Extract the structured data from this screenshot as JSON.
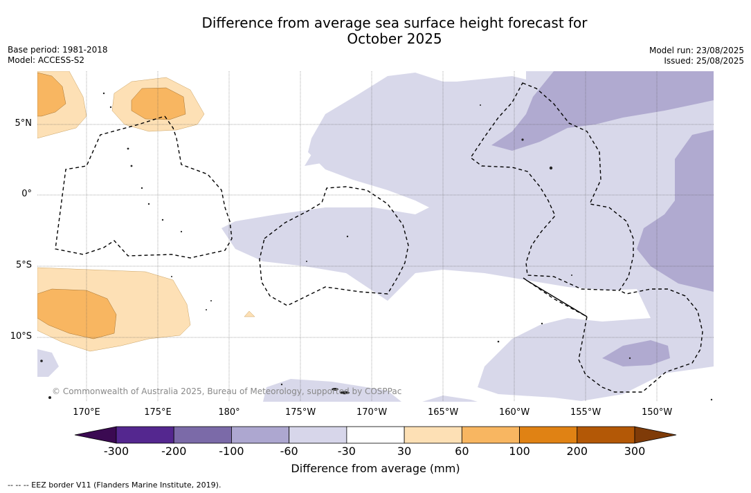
{
  "header": {
    "title_line1": "Difference from average sea surface height forecast for",
    "title_line2": "October 2025",
    "base_period": "Base period: 1981-2018",
    "model": "Model: ACCESS-S2",
    "model_run": "Model run: 23/08/2025",
    "issued": "Issued: 25/08/2025"
  },
  "map": {
    "lon_labels": [
      "170°E",
      "175°E",
      "180°",
      "175°W",
      "170°W",
      "165°W",
      "160°W",
      "155°W",
      "150°W"
    ],
    "lat_labels": [
      "5°N",
      "0°",
      "5°S",
      "10°S"
    ],
    "copyright": "© Commonwealth of Australia 2025, Bureau of Meteorology, supported by COSPPac"
  },
  "colorbar": {
    "ticks": [
      "-300",
      "-200",
      "-100",
      "-60",
      "-30",
      "30",
      "60",
      "100",
      "200",
      "300"
    ],
    "colors": [
      "#3b0a52",
      "#54278f",
      "#7b6aa8",
      "#ada7d0",
      "#d7d6ea",
      "#ffffff",
      "#fde0b5",
      "#f8b661",
      "#e08214",
      "#b35806",
      "#7f3b08"
    ],
    "label": "Difference from average (mm)"
  },
  "footnote": "--  --  -- EEZ border V11 (Flanders Marine Institute, 2019)."
}
